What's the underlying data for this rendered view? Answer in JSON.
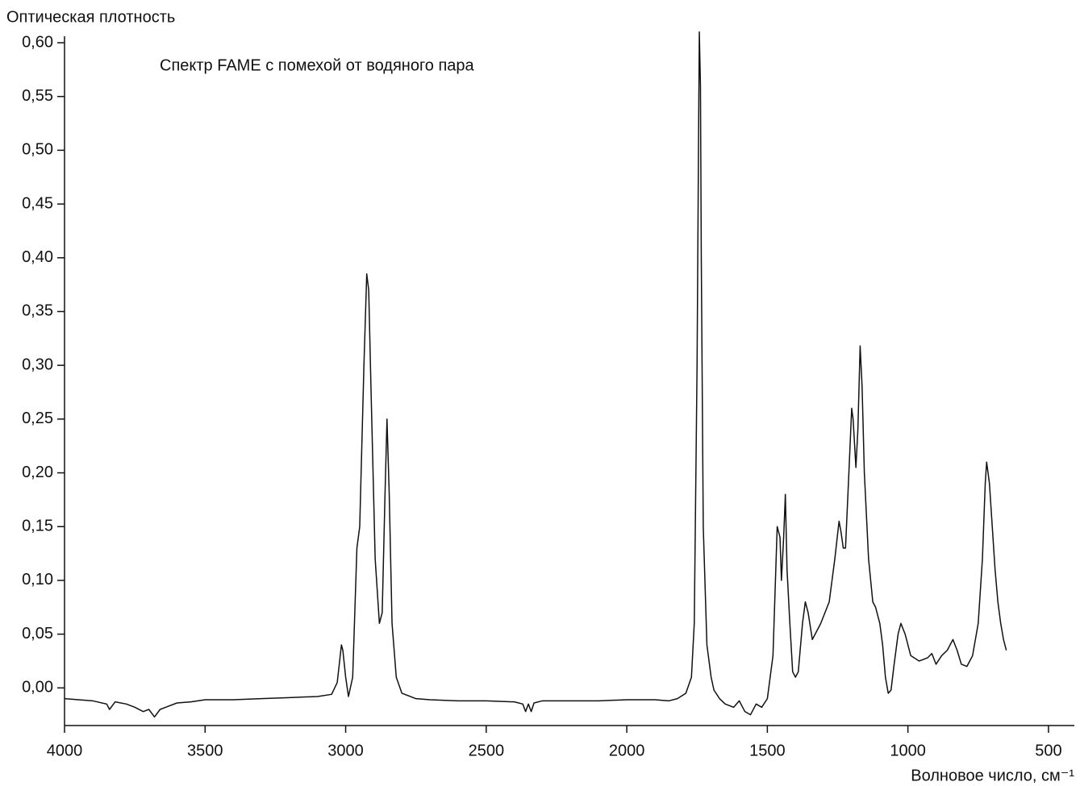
{
  "chart_data": {
    "type": "line",
    "y_label": "Оптическая плотность",
    "x_label": "Волновое число, см⁻¹",
    "annotation": "Спектр FAME с помехой от водяного пара",
    "xlim": [
      4000,
      408
    ],
    "ylim": [
      -0.035,
      0.606
    ],
    "xticks": [
      4000,
      3500,
      3000,
      2500,
      2000,
      1500,
      1000,
      500
    ],
    "yticks": [
      {
        "value": 0,
        "label": "0,00"
      },
      {
        "value": 0.05,
        "label": "0,05"
      },
      {
        "value": 0.1,
        "label": "0,10"
      },
      {
        "value": 0.15,
        "label": "0,15"
      },
      {
        "value": 0.2,
        "label": "0,20"
      },
      {
        "value": 0.25,
        "label": "0,25"
      },
      {
        "value": 0.3,
        "label": "0,30"
      },
      {
        "value": 0.35,
        "label": "0,35"
      },
      {
        "value": 0.4,
        "label": "0,40"
      },
      {
        "value": 0.45,
        "label": "0,45"
      },
      {
        "value": 0.5,
        "label": "0,50"
      },
      {
        "value": 0.55,
        "label": "0,55"
      },
      {
        "value": 0.6,
        "label": "0,60"
      }
    ],
    "x": [
      4000,
      3900,
      3850,
      3840,
      3820,
      3780,
      3750,
      3720,
      3700,
      3680,
      3660,
      3640,
      3600,
      3550,
      3500,
      3400,
      3300,
      3200,
      3100,
      3050,
      3030,
      3015,
      3010,
      3000,
      2990,
      2975,
      2960,
      2950,
      2935,
      2925,
      2918,
      2910,
      2895,
      2880,
      2870,
      2860,
      2853,
      2845,
      2835,
      2820,
      2800,
      2750,
      2700,
      2600,
      2500,
      2400,
      2370,
      2360,
      2350,
      2340,
      2330,
      2300,
      2200,
      2100,
      2000,
      1900,
      1850,
      1820,
      1790,
      1770,
      1760,
      1750,
      1745,
      1742,
      1738,
      1735,
      1728,
      1715,
      1700,
      1690,
      1670,
      1650,
      1620,
      1600,
      1580,
      1560,
      1540,
      1520,
      1500,
      1480,
      1465,
      1455,
      1450,
      1442,
      1436,
      1430,
      1420,
      1410,
      1400,
      1390,
      1375,
      1365,
      1355,
      1340,
      1330,
      1310,
      1280,
      1260,
      1245,
      1238,
      1230,
      1222,
      1210,
      1200,
      1195,
      1185,
      1178,
      1170,
      1163,
      1155,
      1140,
      1125,
      1115,
      1100,
      1090,
      1080,
      1070,
      1060,
      1050,
      1035,
      1025,
      1010,
      990,
      960,
      930,
      915,
      900,
      880,
      860,
      840,
      825,
      810,
      790,
      770,
      750,
      735,
      725,
      720,
      710,
      700,
      690,
      680,
      670,
      660,
      650
    ],
    "series": [
      {
        "color": "#111111",
        "values": [
          -0.01,
          -0.012,
          -0.015,
          -0.02,
          -0.013,
          -0.015,
          -0.018,
          -0.022,
          -0.02,
          -0.027,
          -0.02,
          -0.018,
          -0.014,
          -0.013,
          -0.011,
          -0.011,
          -0.01,
          -0.009,
          -0.008,
          -0.006,
          0.005,
          0.04,
          0.035,
          0.01,
          -0.008,
          0.01,
          0.13,
          0.15,
          0.3,
          0.385,
          0.37,
          0.28,
          0.12,
          0.06,
          0.07,
          0.18,
          0.25,
          0.18,
          0.06,
          0.01,
          -0.005,
          -0.01,
          -0.011,
          -0.012,
          -0.012,
          -0.013,
          -0.015,
          -0.022,
          -0.015,
          -0.022,
          -0.014,
          -0.012,
          -0.012,
          -0.012,
          -0.011,
          -0.011,
          -0.012,
          -0.01,
          -0.005,
          0.01,
          0.06,
          0.3,
          0.5,
          0.61,
          0.56,
          0.4,
          0.15,
          0.04,
          0.01,
          -0.002,
          -0.01,
          -0.015,
          -0.018,
          -0.012,
          -0.022,
          -0.025,
          -0.015,
          -0.018,
          -0.01,
          0.03,
          0.15,
          0.14,
          0.1,
          0.14,
          0.18,
          0.11,
          0.06,
          0.015,
          0.01,
          0.015,
          0.06,
          0.08,
          0.07,
          0.045,
          0.05,
          0.06,
          0.08,
          0.12,
          0.155,
          0.145,
          0.13,
          0.13,
          0.2,
          0.26,
          0.25,
          0.205,
          0.24,
          0.318,
          0.28,
          0.2,
          0.12,
          0.08,
          0.075,
          0.06,
          0.04,
          0.01,
          -0.005,
          -0.002,
          0.02,
          0.05,
          0.06,
          0.05,
          0.03,
          0.025,
          0.028,
          0.032,
          0.022,
          0.03,
          0.035,
          0.045,
          0.035,
          0.022,
          0.02,
          0.03,
          0.06,
          0.12,
          0.19,
          0.21,
          0.19,
          0.15,
          0.11,
          0.08,
          0.06,
          0.045,
          0.035
        ]
      }
    ]
  }
}
